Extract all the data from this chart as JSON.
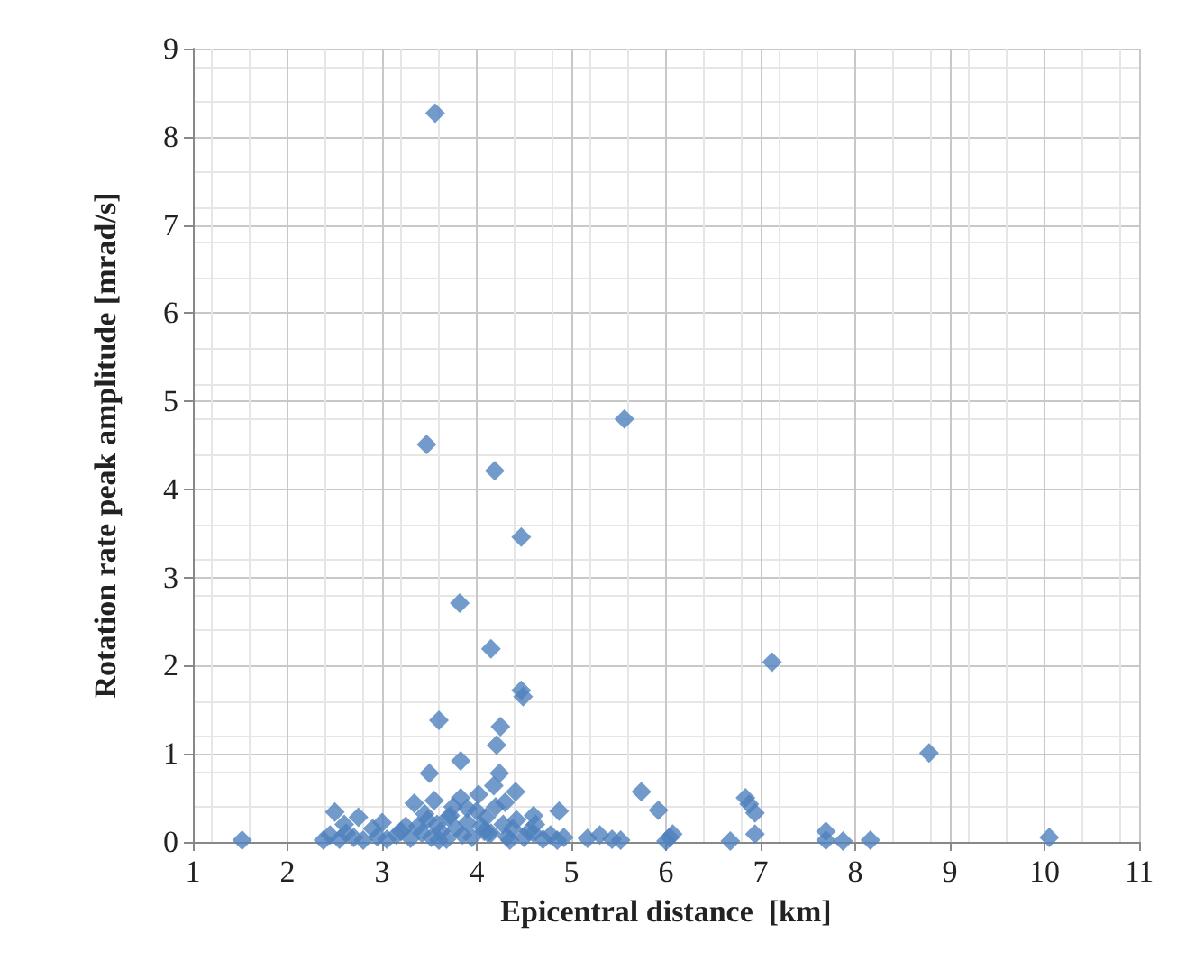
{
  "chart_data": {
    "type": "scatter",
    "xlabel": "Epicentral distance  [km]",
    "ylabel": "Rotation rate peak amplitude [mrad/s]",
    "xlim": [
      1,
      11
    ],
    "xticks": [
      1,
      2,
      3,
      4,
      5,
      6,
      7,
      8,
      9,
      10,
      11
    ],
    "ylim": [
      0,
      9
    ],
    "yticks": [
      0,
      1,
      2,
      3,
      4,
      5,
      6,
      7,
      8,
      9
    ],
    "grid": true,
    "marker": "diamond",
    "series": [
      {
        "color": "#4f81bd",
        "x": [
          1.52,
          3.56,
          3.47,
          4.19,
          5.56,
          4.47,
          3.82,
          4.15,
          7.12,
          4.47,
          4.49,
          3.6,
          4.25,
          4.21,
          3.83,
          3.5,
          4.24,
          4.41,
          4.18,
          3.34,
          3.55,
          3.83,
          4.02,
          2.5,
          2.75,
          4.87,
          5.74,
          5.92,
          6.04,
          4.6,
          6.07,
          6.0,
          5.17,
          5.3,
          5.43,
          5.52,
          6.68,
          6.84,
          6.88,
          6.94,
          6.94,
          7.69,
          7.69,
          7.87,
          8.16,
          8.78,
          10.05,
          2.38,
          2.45,
          2.55,
          2.62,
          2.7,
          2.8,
          2.9,
          2.95,
          3.05,
          3.15,
          3.2,
          3.3,
          3.38,
          3.42,
          3.48,
          3.52,
          3.58,
          3.62,
          3.68,
          3.72,
          3.78,
          3.85,
          3.9,
          3.95,
          4.0,
          4.05,
          4.1,
          4.12,
          4.2,
          4.28,
          4.32,
          4.38,
          4.42,
          4.5,
          4.55,
          4.62,
          4.7,
          4.78,
          4.85,
          4.92,
          3.6,
          3.75,
          3.9,
          4.08,
          4.3,
          3.45,
          3.7,
          4.15,
          4.35,
          2.6,
          3.0,
          3.25,
          4.6
        ],
        "values": [
          0.02,
          8.27,
          4.51,
          4.21,
          4.8,
          3.46,
          2.71,
          2.19,
          2.04,
          1.72,
          1.65,
          1.38,
          1.31,
          1.1,
          0.92,
          0.78,
          0.78,
          0.57,
          0.64,
          0.44,
          0.47,
          0.5,
          0.54,
          0.34,
          0.28,
          0.35,
          0.57,
          0.36,
          0.05,
          0.3,
          0.09,
          0.01,
          0.04,
          0.08,
          0.03,
          0.02,
          0.01,
          0.5,
          0.43,
          0.33,
          0.09,
          0.12,
          0.02,
          0.01,
          0.02,
          1.01,
          0.05,
          0.02,
          0.08,
          0.03,
          0.1,
          0.05,
          0.02,
          0.15,
          0.06,
          0.03,
          0.08,
          0.12,
          0.04,
          0.18,
          0.1,
          0.25,
          0.05,
          0.2,
          0.12,
          0.03,
          0.3,
          0.15,
          0.08,
          0.22,
          0.05,
          0.35,
          0.18,
          0.28,
          0.1,
          0.4,
          0.2,
          0.06,
          0.15,
          0.25,
          0.05,
          0.12,
          0.2,
          0.03,
          0.08,
          0.02,
          0.05,
          0.02,
          0.4,
          0.38,
          0.12,
          0.45,
          0.32,
          0.28,
          0.1,
          0.02,
          0.2,
          0.22,
          0.18,
          0.1
        ]
      }
    ]
  }
}
